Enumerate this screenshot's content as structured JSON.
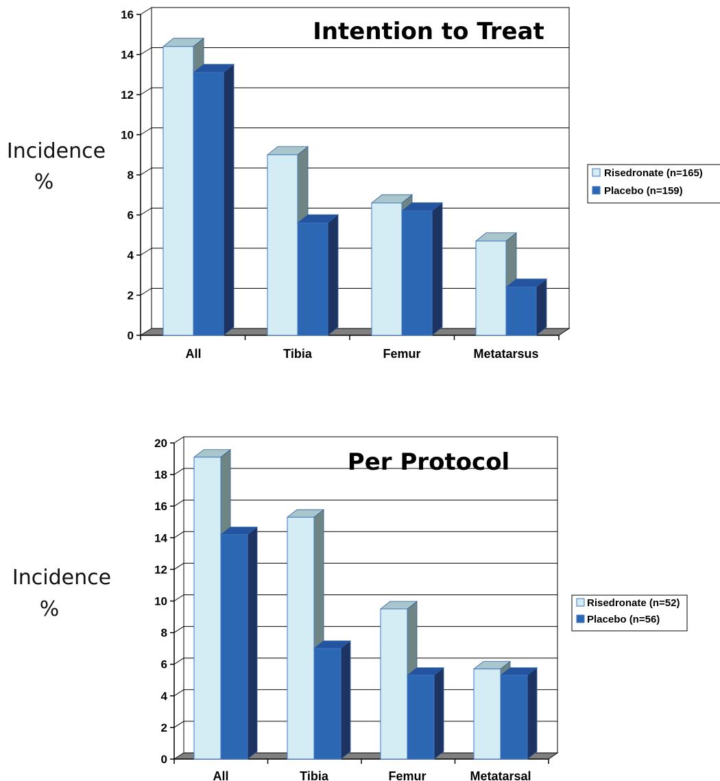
{
  "chart_data": [
    {
      "type": "bar",
      "title": "Intention to Treat",
      "ylabel": "Incidence %",
      "ylabel_lines": [
        "Incidence",
        "%"
      ],
      "xlabel": "",
      "categories": [
        "All",
        "Tibia",
        "Femur",
        "Metatarsus"
      ],
      "series": [
        {
          "name": "Risedronate (n=165)",
          "color": "#d4ecf4",
          "values": [
            14.4,
            9.0,
            6.6,
            4.7
          ]
        },
        {
          "name": "Placebo (n=159)",
          "color": "#2b67b3",
          "values": [
            13.1,
            5.6,
            6.2,
            2.4
          ]
        }
      ],
      "ylim": [
        0,
        16
      ],
      "yticks": [
        0,
        2,
        4,
        6,
        8,
        10,
        12,
        14,
        16
      ],
      "grid": true,
      "legend": "right",
      "three_d": true
    },
    {
      "type": "bar",
      "title": "Per Protocol",
      "ylabel": "Incidence %",
      "ylabel_lines": [
        "Incidence",
        "%"
      ],
      "xlabel": "",
      "categories": [
        "All",
        "Tibia",
        "Femur",
        "Metatarsal"
      ],
      "series": [
        {
          "name": "Risedronate (n=52)",
          "color": "#d4ecf4",
          "values": [
            19.1,
            15.3,
            9.5,
            5.7
          ]
        },
        {
          "name": "Placebo (n=56)",
          "color": "#2b67b3",
          "values": [
            14.2,
            7.0,
            5.3,
            5.3
          ]
        }
      ],
      "ylim": [
        0,
        20
      ],
      "yticks": [
        0,
        2,
        4,
        6,
        8,
        10,
        12,
        14,
        16,
        18,
        20
      ],
      "grid": true,
      "legend": "right",
      "three_d": true
    }
  ]
}
